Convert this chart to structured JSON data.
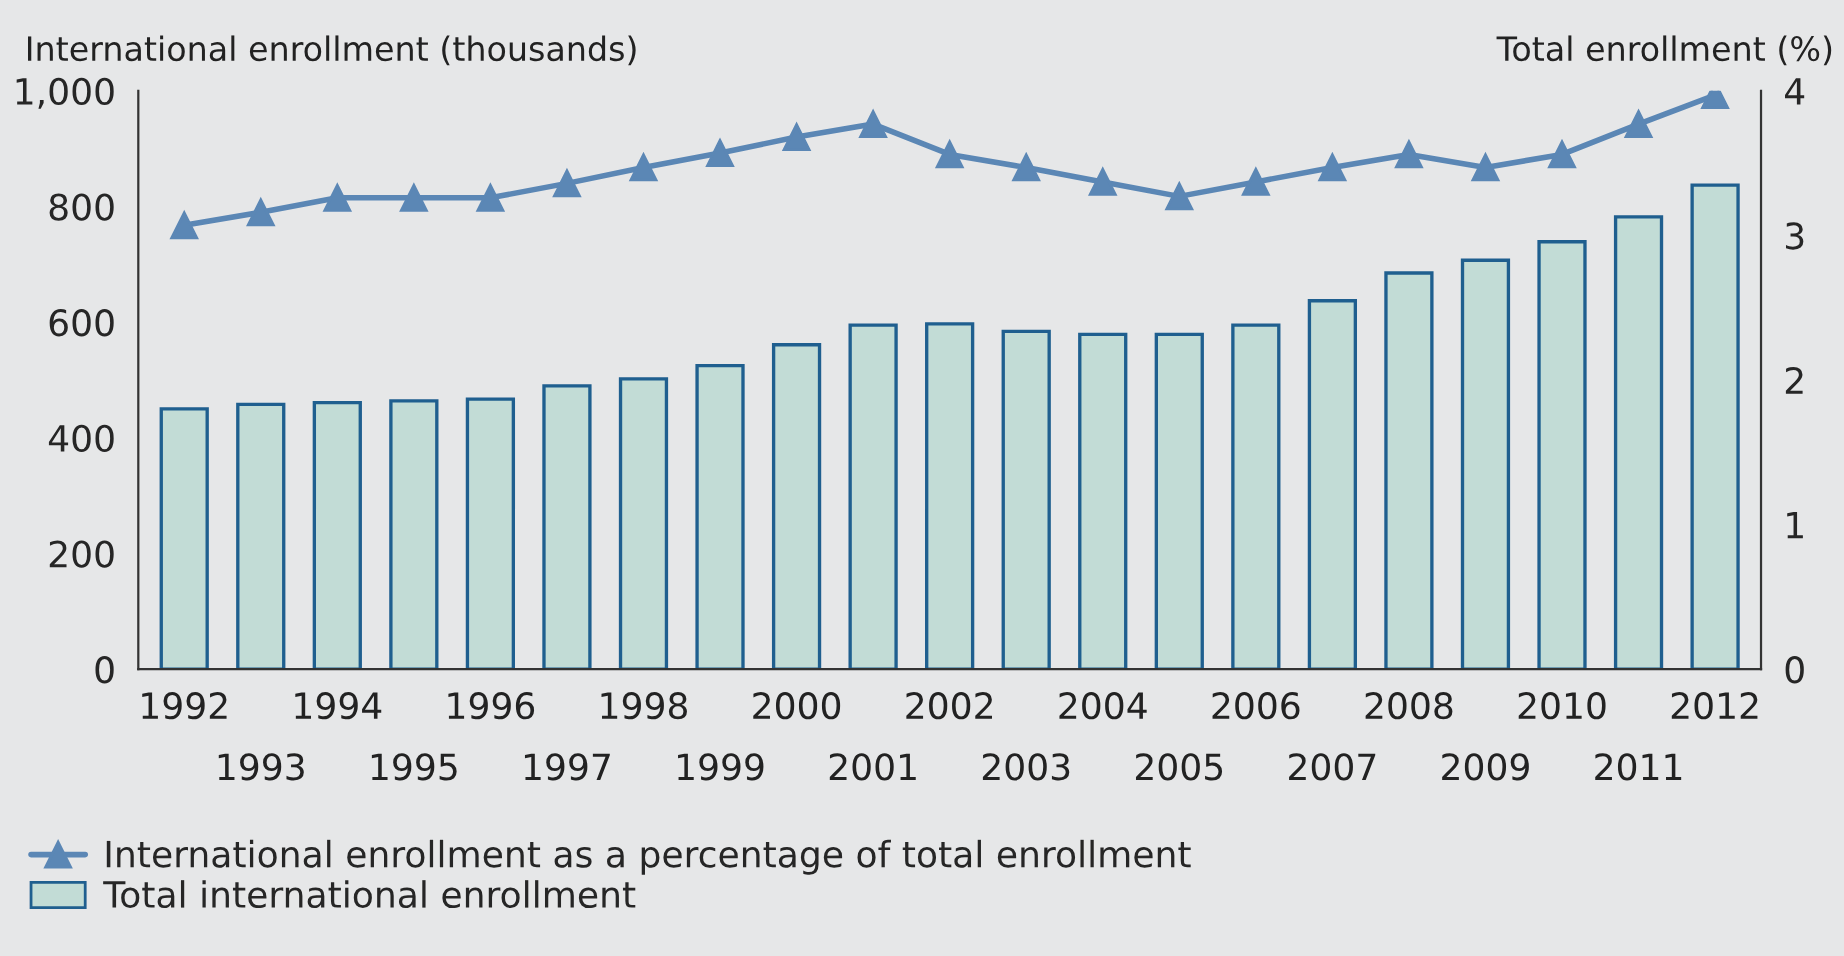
{
  "chart_data": {
    "type": "bar",
    "ylabel": "International enrollment (thousands)",
    "y2label": "Total enrollment (%)",
    "categories": [
      "1992",
      "1993",
      "1994",
      "1995",
      "1996",
      "1997",
      "1998",
      "1999",
      "2000",
      "2001",
      "2002",
      "2003",
      "2004",
      "2005",
      "2006",
      "2007",
      "2008",
      "2009",
      "2010",
      "2011",
      "2012"
    ],
    "series": [
      {
        "name": "International enrollment as a percentage of total enrollment",
        "type": "line",
        "axis": "y2",
        "color": "#5b87b5",
        "marker": "triangle",
        "values": [
          3.07,
          3.16,
          3.26,
          3.26,
          3.26,
          3.36,
          3.47,
          3.57,
          3.68,
          3.77,
          3.56,
          3.47,
          3.37,
          3.27,
          3.37,
          3.47,
          3.56,
          3.47,
          3.56,
          3.77,
          3.97
        ]
      },
      {
        "name": "Total international enrollment",
        "color": "#c2dcd6",
        "values": [
          450,
          458,
          461,
          464,
          467,
          490,
          502,
          525,
          561,
          595,
          597,
          584,
          579,
          579,
          595,
          637,
          685,
          707,
          739,
          782,
          837
        ]
      }
    ],
    "ylim": [
      0,
      1000
    ],
    "yticks": [
      0,
      200,
      400,
      600,
      800,
      {
        "value": 1000,
        "label": "1,000"
      }
    ],
    "y2lim": [
      0,
      4
    ],
    "y2ticks": [
      0,
      1,
      2,
      3,
      4
    ],
    "grid": false,
    "legend": "bottom left"
  }
}
